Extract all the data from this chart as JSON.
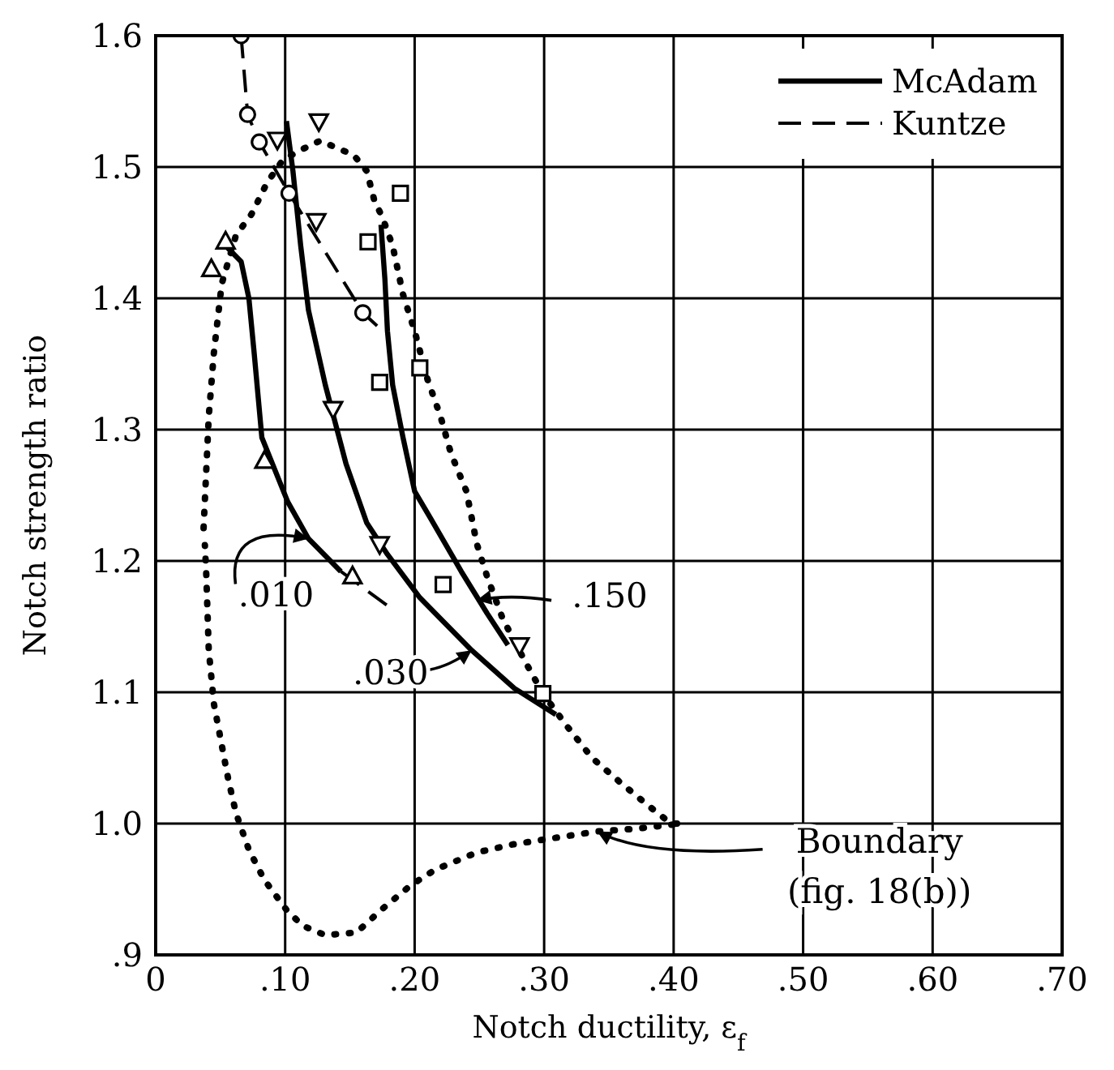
{
  "chart_data": {
    "type": "line",
    "xlabel": "Notch ductility, ε$_{f}$",
    "ylabel": "Notch strength ratio",
    "xlim": [
      0,
      0.7
    ],
    "ylim": [
      0.9,
      1.6
    ],
    "xticks": [
      0,
      {
        "value": 0.1,
        "label": ".10"
      },
      {
        "value": 0.2,
        "label": ".20"
      },
      {
        "value": 0.3,
        "label": ".30"
      },
      {
        "value": 0.4,
        "label": ".40"
      },
      {
        "value": 0.5,
        "label": ".50"
      },
      {
        "value": 0.6,
        "label": ".60"
      },
      {
        "value": 0.7,
        "label": ".70"
      }
    ],
    "yticks": [
      {
        "value": 0.9,
        "label": ".9"
      },
      {
        "value": 1,
        "label": "1.0"
      },
      1.1,
      1.2,
      1.3,
      1.4,
      1.5,
      1.6
    ],
    "grid": true,
    "legend": "top right",
    "series": [
      {
        "name": "McAdam",
        "type": "line",
        "color": "#000000",
        "line_style": "solid",
        "marker": "none",
        "x": [
          0.054,
          0.066,
          0.072,
          0.076,
          0.082,
          0.102,
          0.118,
          0.143
        ],
        "values": [
          1.44,
          1.428,
          1.4,
          1.359,
          1.294,
          1.245,
          1.217,
          1.192
        ]
      },
      {
        "type": "line",
        "color": "#000000",
        "line_style": "dashed",
        "marker": "none",
        "x": [
          0.143,
          0.179
        ],
        "values": [
          1.192,
          1.166
        ]
      },
      {
        "type": "line",
        "color": "#000000",
        "line_style": "solid",
        "marker": "none",
        "x": [
          0.101,
          0.106,
          0.112,
          0.118,
          0.131,
          0.147,
          0.163,
          0.179,
          0.204,
          0.244,
          0.277,
          0.309
        ],
        "values": [
          1.535,
          1.497,
          1.44,
          1.391,
          1.334,
          1.274,
          1.229,
          1.205,
          1.172,
          1.132,
          1.103,
          1.083
        ]
      },
      {
        "type": "line",
        "color": "#000000",
        "line_style": "solid",
        "marker": "none",
        "x": [
          0.174,
          0.177,
          0.179,
          0.183,
          0.191,
          0.2,
          0.212,
          0.236,
          0.256,
          0.272
        ],
        "values": [
          1.456,
          1.415,
          1.375,
          1.334,
          1.294,
          1.253,
          1.233,
          1.192,
          1.16,
          1.136
        ]
      },
      {
        "name": "Kuntze",
        "type": "line",
        "color": "#000000",
        "line_style": "dashed",
        "marker": "none",
        "x": [
          0.066,
          0.071,
          0.08,
          0.103,
          0.16,
          0.171
        ],
        "values": [
          1.6,
          1.54,
          1.519,
          1.48,
          1.389,
          1.379
        ]
      },
      {
        "type": "line",
        "color": "#000000",
        "line_style": "dotted",
        "marker": "none",
        "x": [
          0.037,
          0.041,
          0.045,
          0.051,
          0.062,
          0.074,
          0.086,
          0.098,
          0.11,
          0.127,
          0.153,
          0.163,
          0.169,
          0.175,
          0.183,
          0.191,
          0.2,
          0.21,
          0.22,
          0.228,
          0.24,
          0.248,
          0.256,
          0.268,
          0.285,
          0.299,
          0.317,
          0.337,
          0.358,
          0.38,
          0.398,
          0.406,
          0.37,
          0.341,
          0.301,
          0.275,
          0.248,
          0.216,
          0.197,
          0.175,
          0.155,
          0.131,
          0.114,
          0.102,
          0.084,
          0.072,
          0.062,
          0.056,
          0.045,
          0.041,
          0.039,
          0.038
        ],
        "values": [
          1.225,
          1.31,
          1.359,
          1.411,
          1.448,
          1.464,
          1.488,
          1.505,
          1.512,
          1.52,
          1.509,
          1.497,
          1.474,
          1.462,
          1.44,
          1.403,
          1.375,
          1.338,
          1.31,
          1.282,
          1.253,
          1.213,
          1.188,
          1.156,
          1.124,
          1.099,
          1.075,
          1.05,
          1.032,
          1.014,
          1.0,
          1.0,
          0.996,
          0.994,
          0.988,
          0.984,
          0.978,
          0.965,
          0.953,
          0.935,
          0.917,
          0.915,
          0.922,
          0.933,
          0.957,
          0.98,
          1.008,
          1.034,
          1.091,
          1.132,
          1.192,
          1.212
        ]
      },
      {
        "type": "scatter",
        "color": "#000000",
        "marker": "circle",
        "x": [
          0.066,
          0.071,
          0.08,
          0.103,
          0.16
        ],
        "values": [
          1.6,
          1.54,
          1.519,
          1.48,
          1.389
        ]
      },
      {
        "type": "scatter",
        "color": "#000000",
        "marker": "triangle",
        "x": [
          0.043,
          0.054,
          0.084,
          0.152
        ],
        "values": [
          1.422,
          1.443,
          1.276,
          1.188
        ]
      },
      {
        "type": "scatter",
        "color": "#000000",
        "marker": "triangle-down",
        "x": [
          0.094,
          0.126,
          0.124,
          0.137,
          0.173,
          0.281
        ],
        "values": [
          1.521,
          1.535,
          1.459,
          1.316,
          1.213,
          1.136
        ]
      },
      {
        "type": "scatter",
        "color": "#000000",
        "marker": "square",
        "x": [
          0.189,
          0.164,
          0.204,
          0.173,
          0.222,
          0.299
        ],
        "values": [
          1.48,
          1.443,
          1.347,
          1.336,
          1.182,
          1.099
        ]
      }
    ],
    "annotations": [
      {
        "text": ".010",
        "x": 0.118,
        "y": 1.217
      },
      {
        "text": ".030",
        "x": 0.244,
        "y": 1.132
      },
      {
        "text": ".150",
        "x": 0.248,
        "y": 1.17
      },
      {
        "text": "Boundary\n(fig. 18(b))",
        "x": 0.341,
        "y": 0.994
      }
    ]
  }
}
